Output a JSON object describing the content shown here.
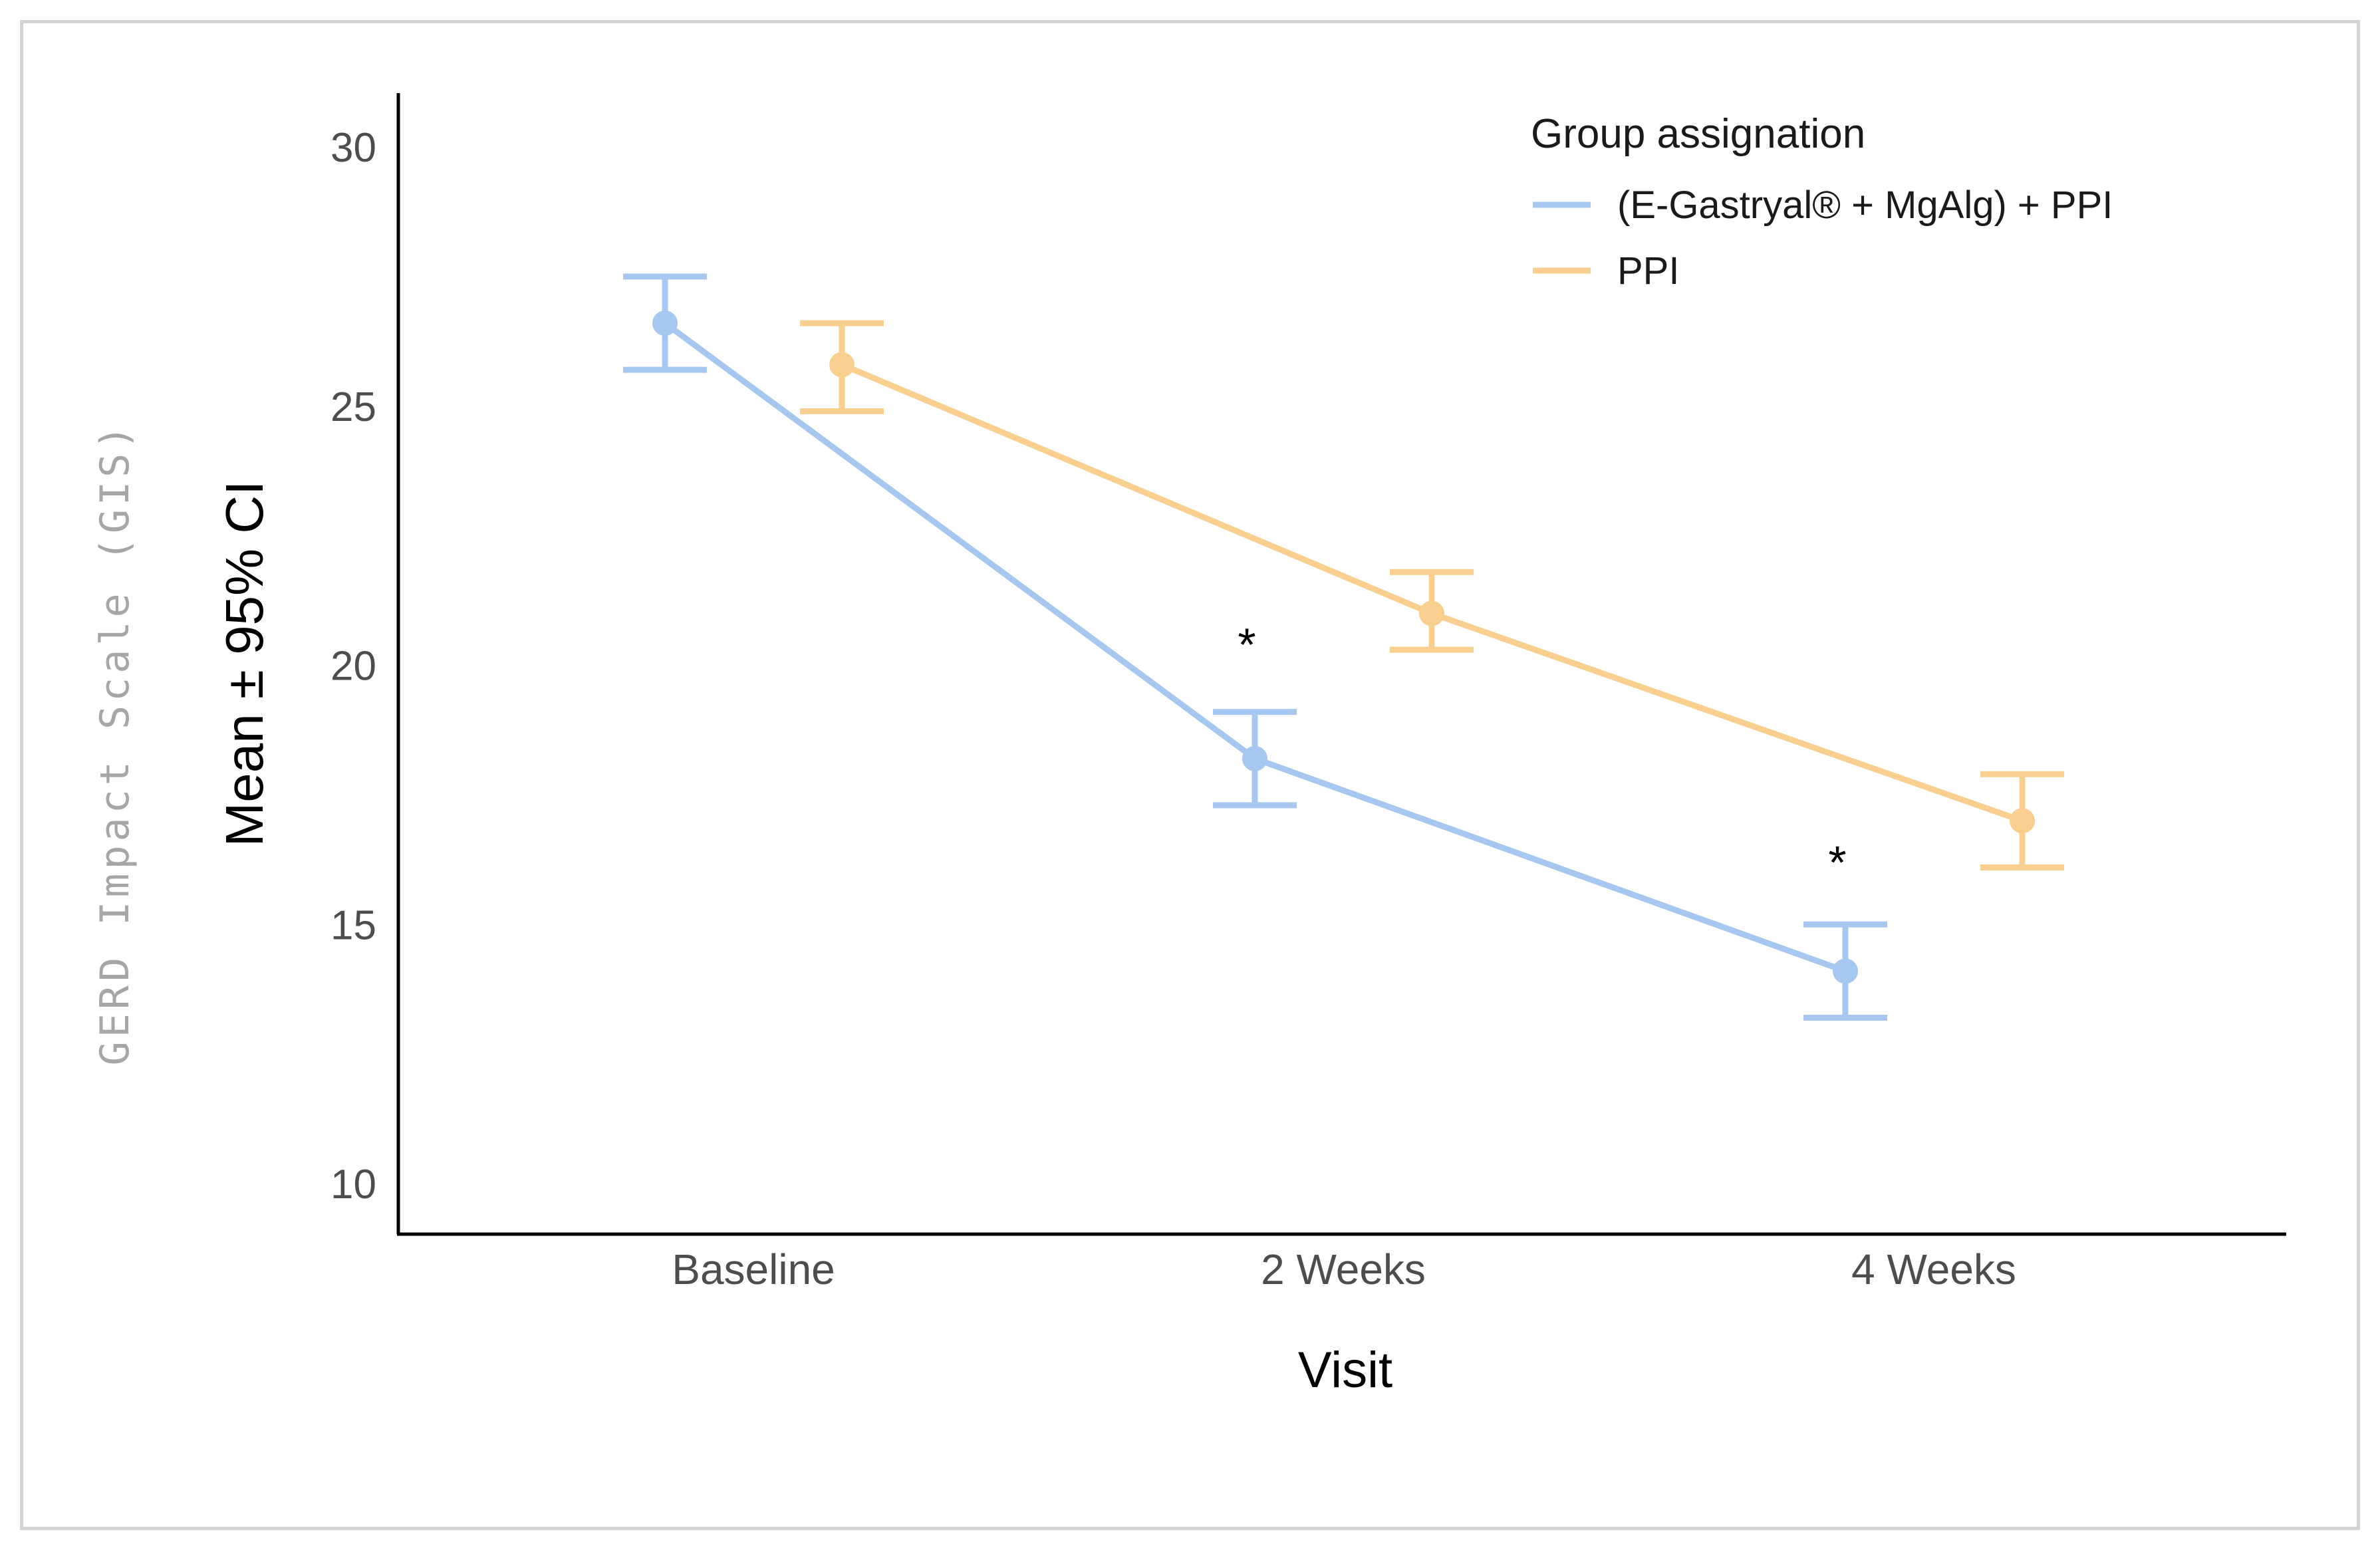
{
  "chart_data": {
    "type": "line",
    "outer_label": "GERD Impact Scale (GIS)",
    "xlabel": "Visit",
    "ylabel": "Mean ± 95% CI",
    "categories": [
      "Baseline",
      "2 Weeks",
      "4 Weeks"
    ],
    "ylim": [
      10,
      30
    ],
    "yticks": [
      "10",
      "15",
      "20",
      "25",
      "30"
    ],
    "legend": {
      "title": "Group assignation",
      "position": "top-right"
    },
    "series": [
      {
        "name": "(E-Gastryal® + MgAlg) + PPI",
        "color": "#a6c8f0",
        "values": [
          26.6,
          18.2,
          14.1
        ],
        "ci_low": [
          25.7,
          17.3,
          13.2
        ],
        "ci_high": [
          27.5,
          19.1,
          15.0
        ]
      },
      {
        "name": "PPI",
        "color": "#f8cf8f",
        "values": [
          25.8,
          21.0,
          17.0
        ],
        "ci_low": [
          24.9,
          20.3,
          16.1
        ],
        "ci_high": [
          26.6,
          21.8,
          17.9
        ]
      }
    ],
    "annotations": [
      {
        "text": "*",
        "category": "2 Weeks",
        "y": 20.6
      },
      {
        "text": "*",
        "category": "4 Weeks",
        "y": 16.4
      }
    ]
  }
}
